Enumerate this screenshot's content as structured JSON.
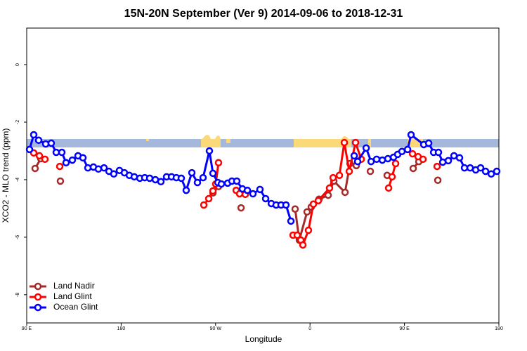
{
  "chart_data": {
    "type": "line",
    "title": "15N-20N September (Ver 9)   2014-09-06 to 2018-12-31",
    "x_label": "Longitude",
    "y_label": "XCO2 - MLO trend (ppm)",
    "xlim": [
      90,
      540
    ],
    "xticks": [
      {
        "value": 90,
        "label": "90 E"
      },
      180,
      {
        "value": 270,
        "label": "90 W"
      },
      {
        "value": 360,
        "label": "0"
      },
      {
        "value": 450,
        "label": "90 E"
      },
      {
        "value": 540,
        "label": "180"
      }
    ],
    "ylim": [
      -8.98,
      1.27
    ],
    "yticks": [
      -8,
      -6,
      -4,
      -2,
      0
    ],
    "legend": "bottom left",
    "series": [
      {
        "name": "Land Nadir",
        "color": "#a52a2a",
        "x": [
          98.0,
          103.4,
          null,
          122.1,
          null,
          267.5,
          272.8,
          null,
          294.3,
          null,
          345.8,
          349.8,
          357.2,
          361.2,
          null,
          368.6,
          377.3,
          382.7,
          393.4,
          398.1,
          404.1,
          null,
          417.5,
          null,
          433.5,
          null,
          458.3,
          463.7,
          null,
          481.8
        ],
        "values": [
          -3.61,
          -3.27,
          null,
          -4.05,
          null,
          -4.46,
          -4.24,
          null,
          -4.98,
          null,
          -5.02,
          -6.1,
          -5.12,
          -4.95,
          null,
          -4.68,
          -4.54,
          -4.05,
          -4.44,
          -3.44,
          -3.51,
          null,
          -3.71,
          null,
          -3.85,
          null,
          -3.61,
          -3.37,
          null,
          -4.02
        ]
      },
      {
        "name": "Land Glint",
        "color": "#ff0000",
        "x": [
          96.7,
          102.1,
          107.4,
          null,
          121.5,
          null,
          258.8,
          263.5,
          267.5,
          270.1,
          272.8,
          null,
          289.6,
          292.9,
          298.3,
          null,
          343.8,
          347.8,
          351.2,
          353.2,
          358.5,
          363.2,
          367.9,
          378.6,
          382.0,
          388.0,
          392.7,
          397.4,
          403.4,
          408.8,
          null,
          434.9,
          438.2,
          441.6,
          null,
          457.7,
          463.0,
          467.7,
          null,
          481.1
        ],
        "values": [
          -3.07,
          -3.17,
          -3.29,
          null,
          -3.54,
          null,
          -4.88,
          -4.66,
          -4.39,
          -4.15,
          -3.41,
          null,
          -4.37,
          -4.49,
          -4.51,
          null,
          -5.93,
          -5.93,
          -6.1,
          -6.27,
          -5.76,
          -4.85,
          -4.73,
          -4.29,
          -3.93,
          -3.85,
          -2.71,
          -3.71,
          -2.71,
          -3.29,
          null,
          -4.29,
          -3.9,
          -3.44,
          null,
          -3.1,
          -3.2,
          -3.29,
          null,
          -3.54
        ]
      },
      {
        "name": "Ocean Glint",
        "color": "#0000ff",
        "x": [
          92.7,
          96.7,
          101.4,
          108.1,
          113.4,
          118.1,
          123.5,
          127.5,
          133.5,
          138.9,
          143.6,
          148.3,
          153.6,
          158.3,
          163.7,
          168.4,
          173.0,
          178.4,
          183.1,
          187.8,
          192.5,
          197.8,
          202.5,
          207.2,
          212.6,
          217.9,
          223.3,
          228.0,
          232.6,
          237.3,
          242.0,
          247.4,
          252.7,
          258.1,
          264.1,
          267.5,
          272.2,
          275.5,
          281.5,
          285.6,
          290.2,
          295.6,
          300.3,
          305.6,
          312.3,
          317.7,
          323.1,
          327.7,
          332.4,
          337.1,
          341.8,
          null,
          402.1,
          405.4,
          413.5,
          418.2,
          423.5,
          428.9,
          434.2,
          439.6,
          443.6,
          447.6,
          453.0,
          456.3,
          468.4,
          473.1,
          477.8,
          482.4,
          486.5,
          491.8,
          497.2,
          502.5,
          507.2,
          512.6,
          517.9,
          522.6,
          527.3,
          532.7,
          538.0
        ],
        "values": [
          -2.95,
          -2.44,
          -2.63,
          -2.76,
          -2.73,
          -3.05,
          -3.05,
          -3.41,
          -3.32,
          -3.17,
          -3.24,
          -3.59,
          -3.56,
          -3.63,
          -3.59,
          -3.71,
          -3.8,
          -3.68,
          -3.76,
          -3.85,
          -3.9,
          -3.95,
          -3.93,
          -3.95,
          -4.0,
          -4.07,
          -3.9,
          -3.9,
          -3.93,
          -3.95,
          -4.37,
          -3.76,
          -4.1,
          -3.93,
          -3.0,
          -3.78,
          -4.1,
          -4.15,
          -4.12,
          -4.05,
          -4.05,
          -4.32,
          -4.37,
          -4.49,
          -4.34,
          -4.66,
          -4.83,
          -4.88,
          -4.88,
          -4.88,
          -5.44,
          null,
          -3.17,
          -3.37,
          -2.9,
          -3.37,
          -3.29,
          -3.32,
          -3.27,
          -3.22,
          -3.12,
          -3.02,
          -2.95,
          -2.44,
          -2.78,
          -2.73,
          -3.05,
          -3.05,
          -3.39,
          -3.34,
          -3.17,
          -3.24,
          -3.59,
          -3.59,
          -3.66,
          -3.59,
          -3.71,
          -3.8,
          -3.71
        ]
      }
    ]
  }
}
